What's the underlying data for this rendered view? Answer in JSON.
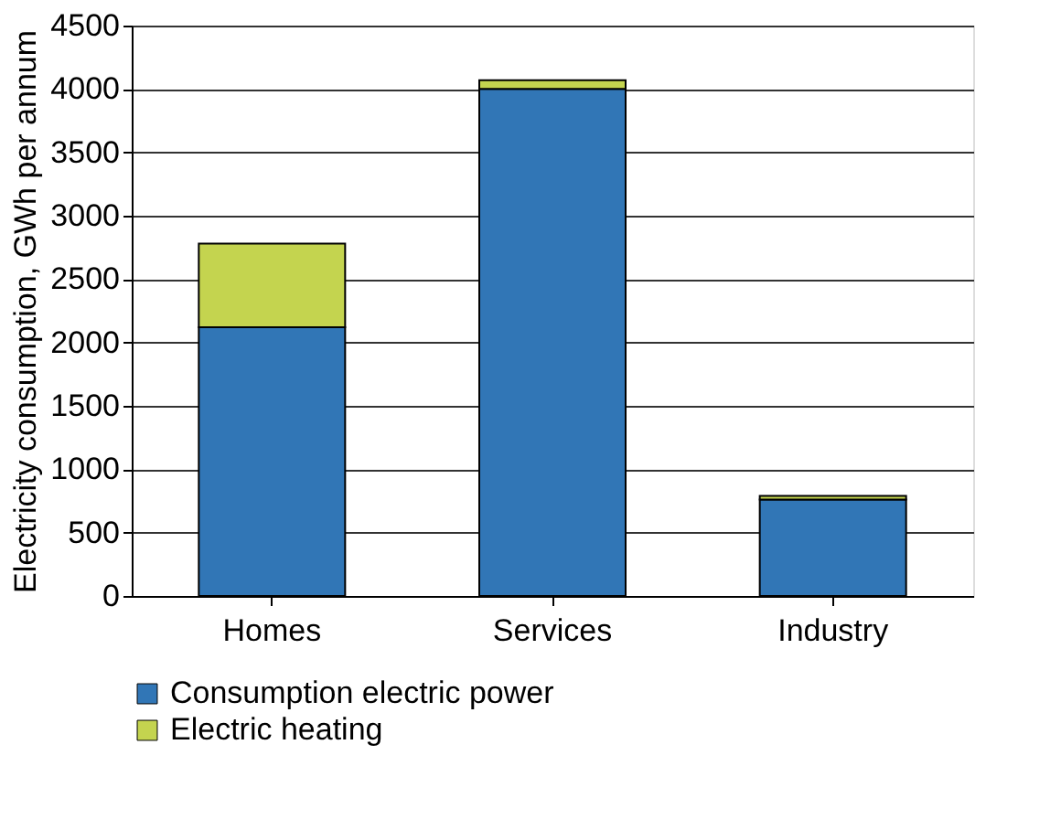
{
  "chart_data": {
    "type": "bar",
    "stacked": true,
    "ylabel": "Electricity consumption, GWh per annum",
    "categories": [
      "Homes",
      "Services",
      "Industry"
    ],
    "series": [
      {
        "name": "Consumption electric power",
        "color": "#3176b6",
        "values": [
          2120,
          4000,
          760
        ]
      },
      {
        "name": "Electric heating",
        "color": "#c4d44f",
        "values": [
          660,
          70,
          30
        ]
      }
    ],
    "ylim": [
      0,
      4500
    ],
    "yticks": [
      0,
      500,
      1000,
      1500,
      2000,
      2500,
      3000,
      3500,
      4000,
      4500
    ],
    "grid": "y",
    "legend": "bottom"
  }
}
